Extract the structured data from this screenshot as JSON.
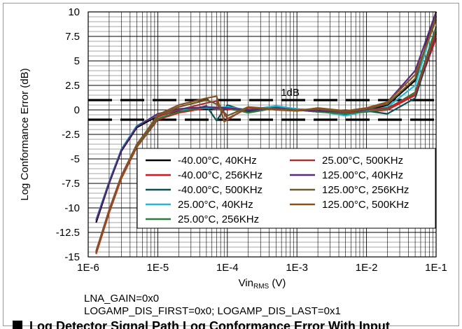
{
  "notes": {
    "line1": "LNA_GAIN=0x0",
    "line2": "LOGAMP_DIS_FIRST=0x0; LOGAMP_DIS_LAST=0x1"
  },
  "caption": {
    "text": "Log Detector Signal Path Log Conformance Error With Input"
  },
  "chart_data": {
    "type": "line",
    "title": "",
    "xlabel": "Vin",
    "xlabel_sub": "RMS",
    "xlabel_unit": " (V)",
    "ylabel": "Log Conformance Error (dB)",
    "xscale": "log",
    "xlim": [
      1e-06,
      0.1
    ],
    "ylim": [
      -15,
      10
    ],
    "x_ticks": [
      "1E-6",
      "1E-5",
      "1E-4",
      "1E-3",
      "1E-2",
      "1E-1"
    ],
    "y_ticks": [
      "10",
      "7.5",
      "5",
      "2.5",
      "0",
      "-2.5",
      "-5",
      "-7.5",
      "-10",
      "-12.5",
      "-15"
    ],
    "y_tick_values": [
      10,
      7.5,
      5,
      2.5,
      0,
      -2.5,
      -5,
      -7.5,
      -10,
      -12.5,
      -15
    ],
    "grid": true,
    "legend_position": "lower-right",
    "limit_lines": {
      "label": "1dB",
      "values": [
        1,
        -1
      ]
    },
    "series": [
      {
        "name": "-40.00°C, 40KHz",
        "color": "#000000",
        "points": [
          [
            1.3e-06,
            -11.5
          ],
          [
            2e-06,
            -7.5
          ],
          [
            3e-06,
            -4.2
          ],
          [
            5e-06,
            -1.8
          ],
          [
            1e-05,
            -0.6
          ],
          [
            2e-05,
            -0.1
          ],
          [
            5e-05,
            0.1
          ],
          [
            0.0001,
            0.2
          ],
          [
            0.0002,
            -0.1
          ],
          [
            0.0005,
            0.3
          ],
          [
            0.001,
            0.0
          ],
          [
            0.002,
            -0.2
          ],
          [
            0.005,
            -0.3
          ],
          [
            0.01,
            -0.1
          ],
          [
            0.02,
            0.5
          ],
          [
            0.05,
            3.0
          ],
          [
            0.1,
            10.0
          ]
        ]
      },
      {
        "name": "-40.00°C, 256KHz",
        "color": "#e0121c",
        "points": [
          [
            1.3e-06,
            -14.7
          ],
          [
            2e-06,
            -10.5
          ],
          [
            3e-06,
            -7.0
          ],
          [
            5e-06,
            -3.8
          ],
          [
            1e-05,
            -1.0
          ],
          [
            2e-05,
            -0.3
          ],
          [
            5e-05,
            0.2
          ],
          [
            0.0001,
            0.1
          ],
          [
            0.0002,
            -0.2
          ],
          [
            0.0005,
            0.2
          ],
          [
            0.001,
            0.1
          ],
          [
            0.002,
            -0.1
          ],
          [
            0.005,
            -0.3
          ],
          [
            0.01,
            -0.2
          ],
          [
            0.02,
            0.0
          ],
          [
            0.05,
            1.5
          ],
          [
            0.1,
            7.3
          ]
        ]
      },
      {
        "name": "-40.00°C, 500KHz",
        "color": "#0f4f52",
        "points": [
          [
            1.3e-06,
            -14.5
          ],
          [
            2e-06,
            -10.3
          ],
          [
            3e-06,
            -6.8
          ],
          [
            5e-06,
            -3.6
          ],
          [
            1e-05,
            -0.9
          ],
          [
            2e-05,
            -0.2
          ],
          [
            5e-05,
            0.4
          ],
          [
            7e-05,
            -1.1
          ],
          [
            0.0001,
            0.5
          ],
          [
            0.0002,
            -0.2
          ],
          [
            0.0005,
            0.3
          ],
          [
            0.001,
            0.0
          ],
          [
            0.002,
            -0.1
          ],
          [
            0.005,
            -0.5
          ],
          [
            0.01,
            -0.1
          ],
          [
            0.02,
            -0.4
          ],
          [
            0.05,
            1.2
          ],
          [
            0.1,
            7.8
          ]
        ]
      },
      {
        "name": "25.00°C, 40KHz",
        "color": "#1fb8d8",
        "points": [
          [
            1.3e-06,
            -11.2
          ],
          [
            2e-06,
            -7.3
          ],
          [
            3e-06,
            -4.0
          ],
          [
            5e-06,
            -1.6
          ],
          [
            1e-05,
            -0.5
          ],
          [
            2e-05,
            0.0
          ],
          [
            5e-05,
            0.2
          ],
          [
            0.0001,
            0.3
          ],
          [
            0.0002,
            0.0
          ],
          [
            0.0005,
            0.4
          ],
          [
            0.001,
            0.1
          ],
          [
            0.002,
            -0.1
          ],
          [
            0.005,
            -0.6
          ],
          [
            0.01,
            -0.1
          ],
          [
            0.02,
            0.3
          ],
          [
            0.05,
            2.5
          ],
          [
            0.1,
            9.5
          ]
        ]
      },
      {
        "name": "25.00°C, 256KHz",
        "color": "#2f7a3a",
        "points": [
          [
            1.3e-06,
            -14.6
          ],
          [
            2e-06,
            -10.4
          ],
          [
            3e-06,
            -6.9
          ],
          [
            5e-06,
            -3.7
          ],
          [
            1e-05,
            -0.9
          ],
          [
            2e-05,
            -0.2
          ],
          [
            5e-05,
            0.3
          ],
          [
            0.0001,
            0.2
          ],
          [
            0.0002,
            -0.3
          ],
          [
            0.0005,
            0.2
          ],
          [
            0.001,
            0.0
          ],
          [
            0.002,
            -0.2
          ],
          [
            0.005,
            -0.4
          ],
          [
            0.01,
            -0.2
          ],
          [
            0.02,
            0.1
          ],
          [
            0.05,
            1.8
          ],
          [
            0.1,
            8.5
          ]
        ]
      },
      {
        "name": "25.00°C, 500KHz",
        "color": "#a83232",
        "points": [
          [
            1.3e-06,
            -14.4
          ],
          [
            2e-06,
            -10.2
          ],
          [
            3e-06,
            -6.7
          ],
          [
            5e-06,
            -3.5
          ],
          [
            1e-05,
            -0.7
          ],
          [
            2e-05,
            0.0
          ],
          [
            5e-05,
            0.7
          ],
          [
            7e-05,
            0.9
          ],
          [
            0.0001,
            -0.9
          ],
          [
            0.0002,
            0.2
          ],
          [
            0.0005,
            0.1
          ],
          [
            0.001,
            -0.1
          ],
          [
            0.002,
            0.1
          ],
          [
            0.005,
            -0.3
          ],
          [
            0.01,
            0.0
          ],
          [
            0.02,
            0.2
          ],
          [
            0.05,
            1.6
          ],
          [
            0.1,
            8.0
          ]
        ]
      },
      {
        "name": "125.00°C, 40KHz",
        "color": "#5a2a7a",
        "points": [
          [
            1.3e-06,
            -11.3
          ],
          [
            2e-06,
            -7.4
          ],
          [
            3e-06,
            -4.1
          ],
          [
            5e-06,
            -1.7
          ],
          [
            1e-05,
            -0.4
          ],
          [
            2e-05,
            0.1
          ],
          [
            5e-05,
            0.3
          ],
          [
            0.0001,
            0.2
          ],
          [
            0.0002,
            0.0
          ],
          [
            0.0005,
            0.2
          ],
          [
            0.001,
            0.0
          ],
          [
            0.002,
            -0.1
          ],
          [
            0.005,
            -0.2
          ],
          [
            0.01,
            0.0
          ],
          [
            0.02,
            0.8
          ],
          [
            0.05,
            4.0
          ],
          [
            0.1,
            10.0
          ]
        ]
      },
      {
        "name": "125.00°C, 256KHz",
        "color": "#6b5a2e",
        "points": [
          [
            1.3e-06,
            -14.5
          ],
          [
            2e-06,
            -10.3
          ],
          [
            3e-06,
            -6.8
          ],
          [
            5e-06,
            -3.5
          ],
          [
            1e-05,
            -0.6
          ],
          [
            2e-05,
            0.3
          ],
          [
            5e-05,
            1.0
          ],
          [
            7e-05,
            0.6
          ],
          [
            0.0001,
            -0.6
          ],
          [
            0.0002,
            0.3
          ],
          [
            0.0005,
            0.1
          ],
          [
            0.001,
            0.0
          ],
          [
            0.002,
            0.1
          ],
          [
            0.005,
            -0.2
          ],
          [
            0.01,
            0.1
          ],
          [
            0.02,
            0.6
          ],
          [
            0.05,
            3.2
          ],
          [
            0.1,
            9.6
          ]
        ]
      },
      {
        "name": "125.00°C, 500KHz",
        "color": "#8a5020",
        "points": [
          [
            1.3e-06,
            -14.6
          ],
          [
            2e-06,
            -10.4
          ],
          [
            3e-06,
            -6.9
          ],
          [
            5e-06,
            -3.6
          ],
          [
            1e-05,
            -0.5
          ],
          [
            2e-05,
            0.5
          ],
          [
            5e-05,
            1.2
          ],
          [
            7e-05,
            1.4
          ],
          [
            9e-05,
            -1.2
          ],
          [
            0.0002,
            0.3
          ],
          [
            0.0005,
            0.0
          ],
          [
            0.001,
            -0.1
          ],
          [
            0.002,
            0.2
          ],
          [
            0.005,
            -0.1
          ],
          [
            0.01,
            0.2
          ],
          [
            0.02,
            0.8
          ],
          [
            0.05,
            3.6
          ],
          [
            0.1,
            9.2
          ]
        ]
      }
    ]
  }
}
